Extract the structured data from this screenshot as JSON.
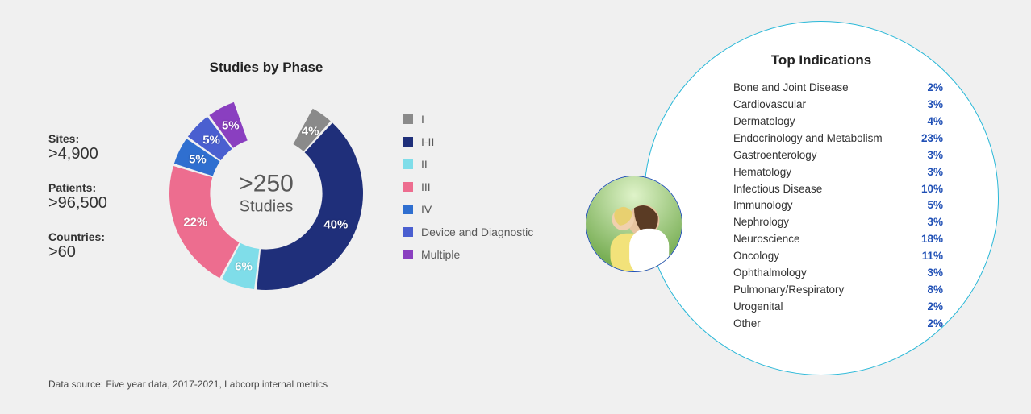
{
  "background_color": "#f0f0f0",
  "stats": [
    {
      "label": "Sites:",
      "value": ">4,900"
    },
    {
      "label": "Patients:",
      "value": ">96,500"
    },
    {
      "label": "Countries:",
      "value": ">60"
    }
  ],
  "donut": {
    "title": "Studies by Phase",
    "center_big": ">250",
    "center_small": "Studies",
    "type": "donut",
    "inner_radius_pct": 58,
    "label_fontsize": 15,
    "label_color": "#ffffff",
    "title_fontsize": 17,
    "center_text_color": "#595959",
    "slices": [
      {
        "name": "I",
        "pct": 4,
        "color": "#8a8a8a",
        "label": "4%"
      },
      {
        "name": "I-II",
        "pct": 40,
        "color": "#1f2f7a",
        "label": "40%"
      },
      {
        "name": "II",
        "pct": 6,
        "color": "#7fdde9",
        "label": "6%"
      },
      {
        "name": "III",
        "pct": 22,
        "color": "#ed6d8f",
        "label": "22%"
      },
      {
        "name": "IV",
        "pct": 5,
        "color": "#2f6fd0",
        "label": "5%"
      },
      {
        "name": "Device and Diagnostic",
        "pct": 5,
        "color": "#4a5fd0",
        "label": "5%"
      },
      {
        "name": "Multiple",
        "pct": 5,
        "color": "#8a3fc0",
        "label": "5%"
      }
    ],
    "start_angle_deg": 28,
    "direction": "clockwise",
    "gap_deg": 1.5
  },
  "legend": {
    "fontsize": 14,
    "text_color": "#595959"
  },
  "indications": {
    "title": "Top Indications",
    "title_fontsize": 17,
    "name_color": "#333333",
    "pct_color": "#1f4fb5",
    "circle_border_color": "#29b8d8",
    "circle_bg": "#ffffff",
    "rows": [
      {
        "name": "Bone and Joint Disease",
        "pct": "2%"
      },
      {
        "name": "Cardiovascular",
        "pct": "3%"
      },
      {
        "name": "Dermatology",
        "pct": "4%"
      },
      {
        "name": "Endocrinology and Metabolism",
        "pct": "23%"
      },
      {
        "name": "Gastroenterology",
        "pct": "3%"
      },
      {
        "name": "Hematology",
        "pct": "3%"
      },
      {
        "name": "Infectious Disease",
        "pct": "10%"
      },
      {
        "name": "Immunology",
        "pct": "5%"
      },
      {
        "name": "Nephrology",
        "pct": "3%"
      },
      {
        "name": "Neuroscience",
        "pct": "18%"
      },
      {
        "name": "Oncology",
        "pct": "11%"
      },
      {
        "name": "Ophthalmology",
        "pct": "3%"
      },
      {
        "name": "Pulmonary/Respiratory",
        "pct": "8%"
      },
      {
        "name": "Urogenital",
        "pct": "2%"
      },
      {
        "name": "Other",
        "pct": "2%"
      }
    ]
  },
  "small_image": {
    "border_color": "#1f4fb5",
    "description": "photo-mother-child"
  },
  "footnote": "Data source: Five year data, 2017-2021, Labcorp internal metrics"
}
